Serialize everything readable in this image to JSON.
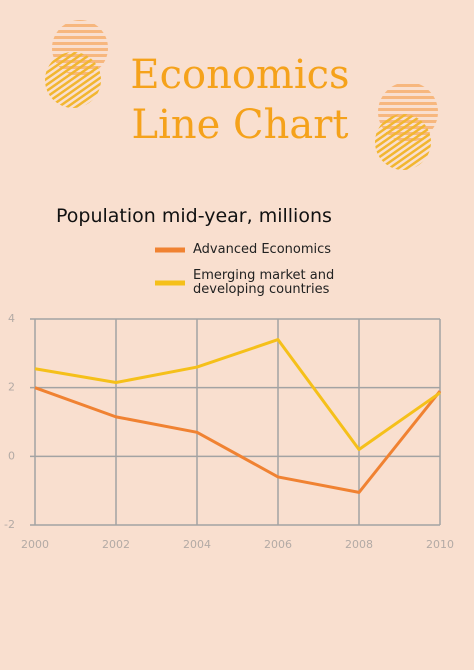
{
  "chart_data": {
    "type": "line",
    "title": "Economics Line Chart",
    "subtitle": "Population mid-year, millions",
    "x": [
      2000,
      2002,
      2004,
      2006,
      2008,
      2010
    ],
    "series": [
      {
        "name": "Advanced Economics",
        "color": "#f08232",
        "values": [
          2.0,
          1.15,
          0.7,
          -0.6,
          -1.05,
          1.9
        ]
      },
      {
        "name": "Emerging market and developing countries",
        "color": "#f5c01a",
        "values": [
          2.55,
          2.15,
          2.6,
          3.4,
          0.2,
          1.85
        ]
      }
    ],
    "xlim": [
      2000,
      2010
    ],
    "xticks": [
      2000,
      2002,
      2004,
      2006,
      2008,
      2010
    ],
    "ylim": [
      -2,
      4
    ],
    "yticks": [
      -2,
      0,
      2,
      4
    ],
    "grid": true
  }
}
